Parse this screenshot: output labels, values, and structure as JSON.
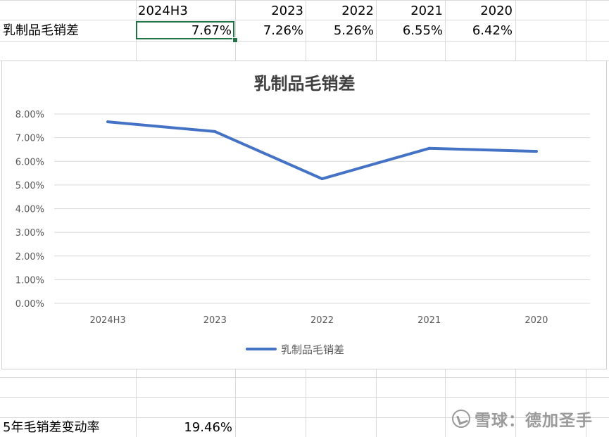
{
  "sheet": {
    "header_row": [
      "2024H3",
      "2023",
      "2022",
      "2021",
      "2020"
    ],
    "row_label": "乳制品毛销差",
    "row_values": [
      "7.67%",
      "7.26%",
      "5.26%",
      "6.55%",
      "6.42%"
    ],
    "summary_label": "5年毛销差变动率",
    "summary_value": "19.46%",
    "selected_cell": "7.67%",
    "gridline_color": "#d9d9d9",
    "selection_color": "#217346"
  },
  "chart_data": {
    "type": "line",
    "title": "乳制品毛销差",
    "categories": [
      "2024H3",
      "2023",
      "2022",
      "2021",
      "2020"
    ],
    "series": [
      {
        "name": "乳制品毛销差",
        "values": [
          7.67,
          7.26,
          5.26,
          6.55,
          6.42
        ],
        "color": "#4472c4"
      }
    ],
    "ylim": [
      0,
      8
    ],
    "y_ticks": [
      0,
      1,
      2,
      3,
      4,
      5,
      6,
      7,
      8
    ],
    "y_tick_labels": [
      "0.00%",
      "1.00%",
      "2.00%",
      "3.00%",
      "4.00%",
      "5.00%",
      "6.00%",
      "7.00%",
      "8.00%"
    ],
    "grid": true,
    "legend_position": "bottom",
    "xlabel": "",
    "ylabel": ""
  },
  "watermark": {
    "text": "雪球：德加圣手",
    "icon": "snowball-logo-icon"
  }
}
